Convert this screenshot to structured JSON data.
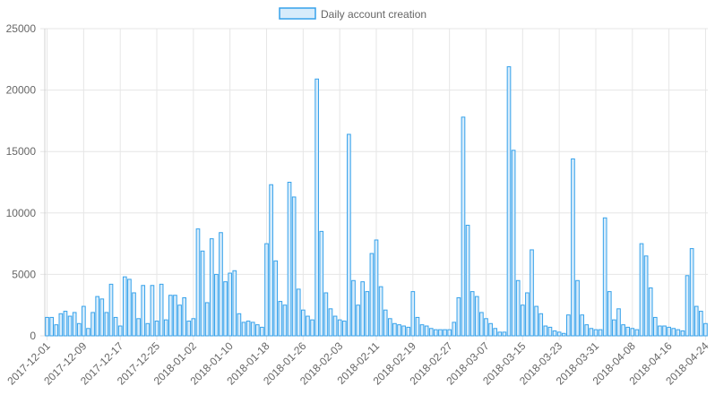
{
  "legend": {
    "label": "Daily account creation"
  },
  "colors": {
    "bar_fill": "#d7ecfb",
    "bar_stroke": "#36a2eb",
    "grid": "#e6e6e6",
    "text": "#666666"
  },
  "chart_data": {
    "type": "bar",
    "title": "",
    "xlabel": "",
    "ylabel": "",
    "ylim": [
      0,
      25000
    ],
    "yticks": [
      0,
      5000,
      10000,
      15000,
      20000,
      25000
    ],
    "x_start": "2017-12-01",
    "x_end": "2018-04-24",
    "xtick_labels": [
      "2017-12-01",
      "2017-12-09",
      "2017-12-17",
      "2017-12-25",
      "2018-01-02",
      "2018-01-10",
      "2018-01-18",
      "2018-01-26",
      "2018-02-03",
      "2018-02-11",
      "2018-02-19",
      "2018-02-27",
      "2018-03-07",
      "2018-03-15",
      "2018-03-23",
      "2018-03-31",
      "2018-04-08",
      "2018-04-16",
      "2018-04-24"
    ],
    "grid": true,
    "legend_position": "top",
    "series": [
      {
        "name": "Daily account creation",
        "values": [
          1500,
          1500,
          900,
          1800,
          2000,
          1600,
          1900,
          1000,
          2400,
          600,
          1900,
          3200,
          3000,
          1900,
          4200,
          1500,
          800,
          4800,
          4600,
          3500,
          1400,
          4100,
          1000,
          4100,
          1200,
          4200,
          1300,
          3300,
          3300,
          2500,
          3100,
          1200,
          1400,
          8700,
          6900,
          2700,
          7900,
          5000,
          8400,
          4400,
          5100,
          5300,
          1800,
          1100,
          1200,
          1100,
          900,
          700,
          7500,
          12300,
          6100,
          2800,
          2500,
          12500,
          11300,
          3800,
          2100,
          1600,
          1300,
          20900,
          8500,
          3500,
          2200,
          1600,
          1300,
          1200,
          16400,
          4500,
          2500,
          4400,
          3600,
          6700,
          7800,
          4000,
          2100,
          1400,
          1000,
          900,
          800,
          700,
          3600,
          1500,
          900,
          800,
          600,
          500,
          500,
          500,
          500,
          1100,
          3100,
          17800,
          9000,
          3600,
          3200,
          1900,
          1400,
          1000,
          600,
          300,
          300,
          21900,
          15100,
          4500,
          2500,
          3500,
          7000,
          2400,
          1800,
          800,
          700,
          400,
          300,
          200,
          1700,
          14400,
          4500,
          1700,
          900,
          600,
          500,
          500,
          9600,
          3600,
          1300,
          2200,
          900,
          700,
          600,
          500,
          7500,
          6500,
          3900,
          1500,
          800,
          800,
          700,
          600,
          500,
          400,
          4900,
          7100,
          2400,
          2000,
          1000
        ]
      }
    ]
  }
}
